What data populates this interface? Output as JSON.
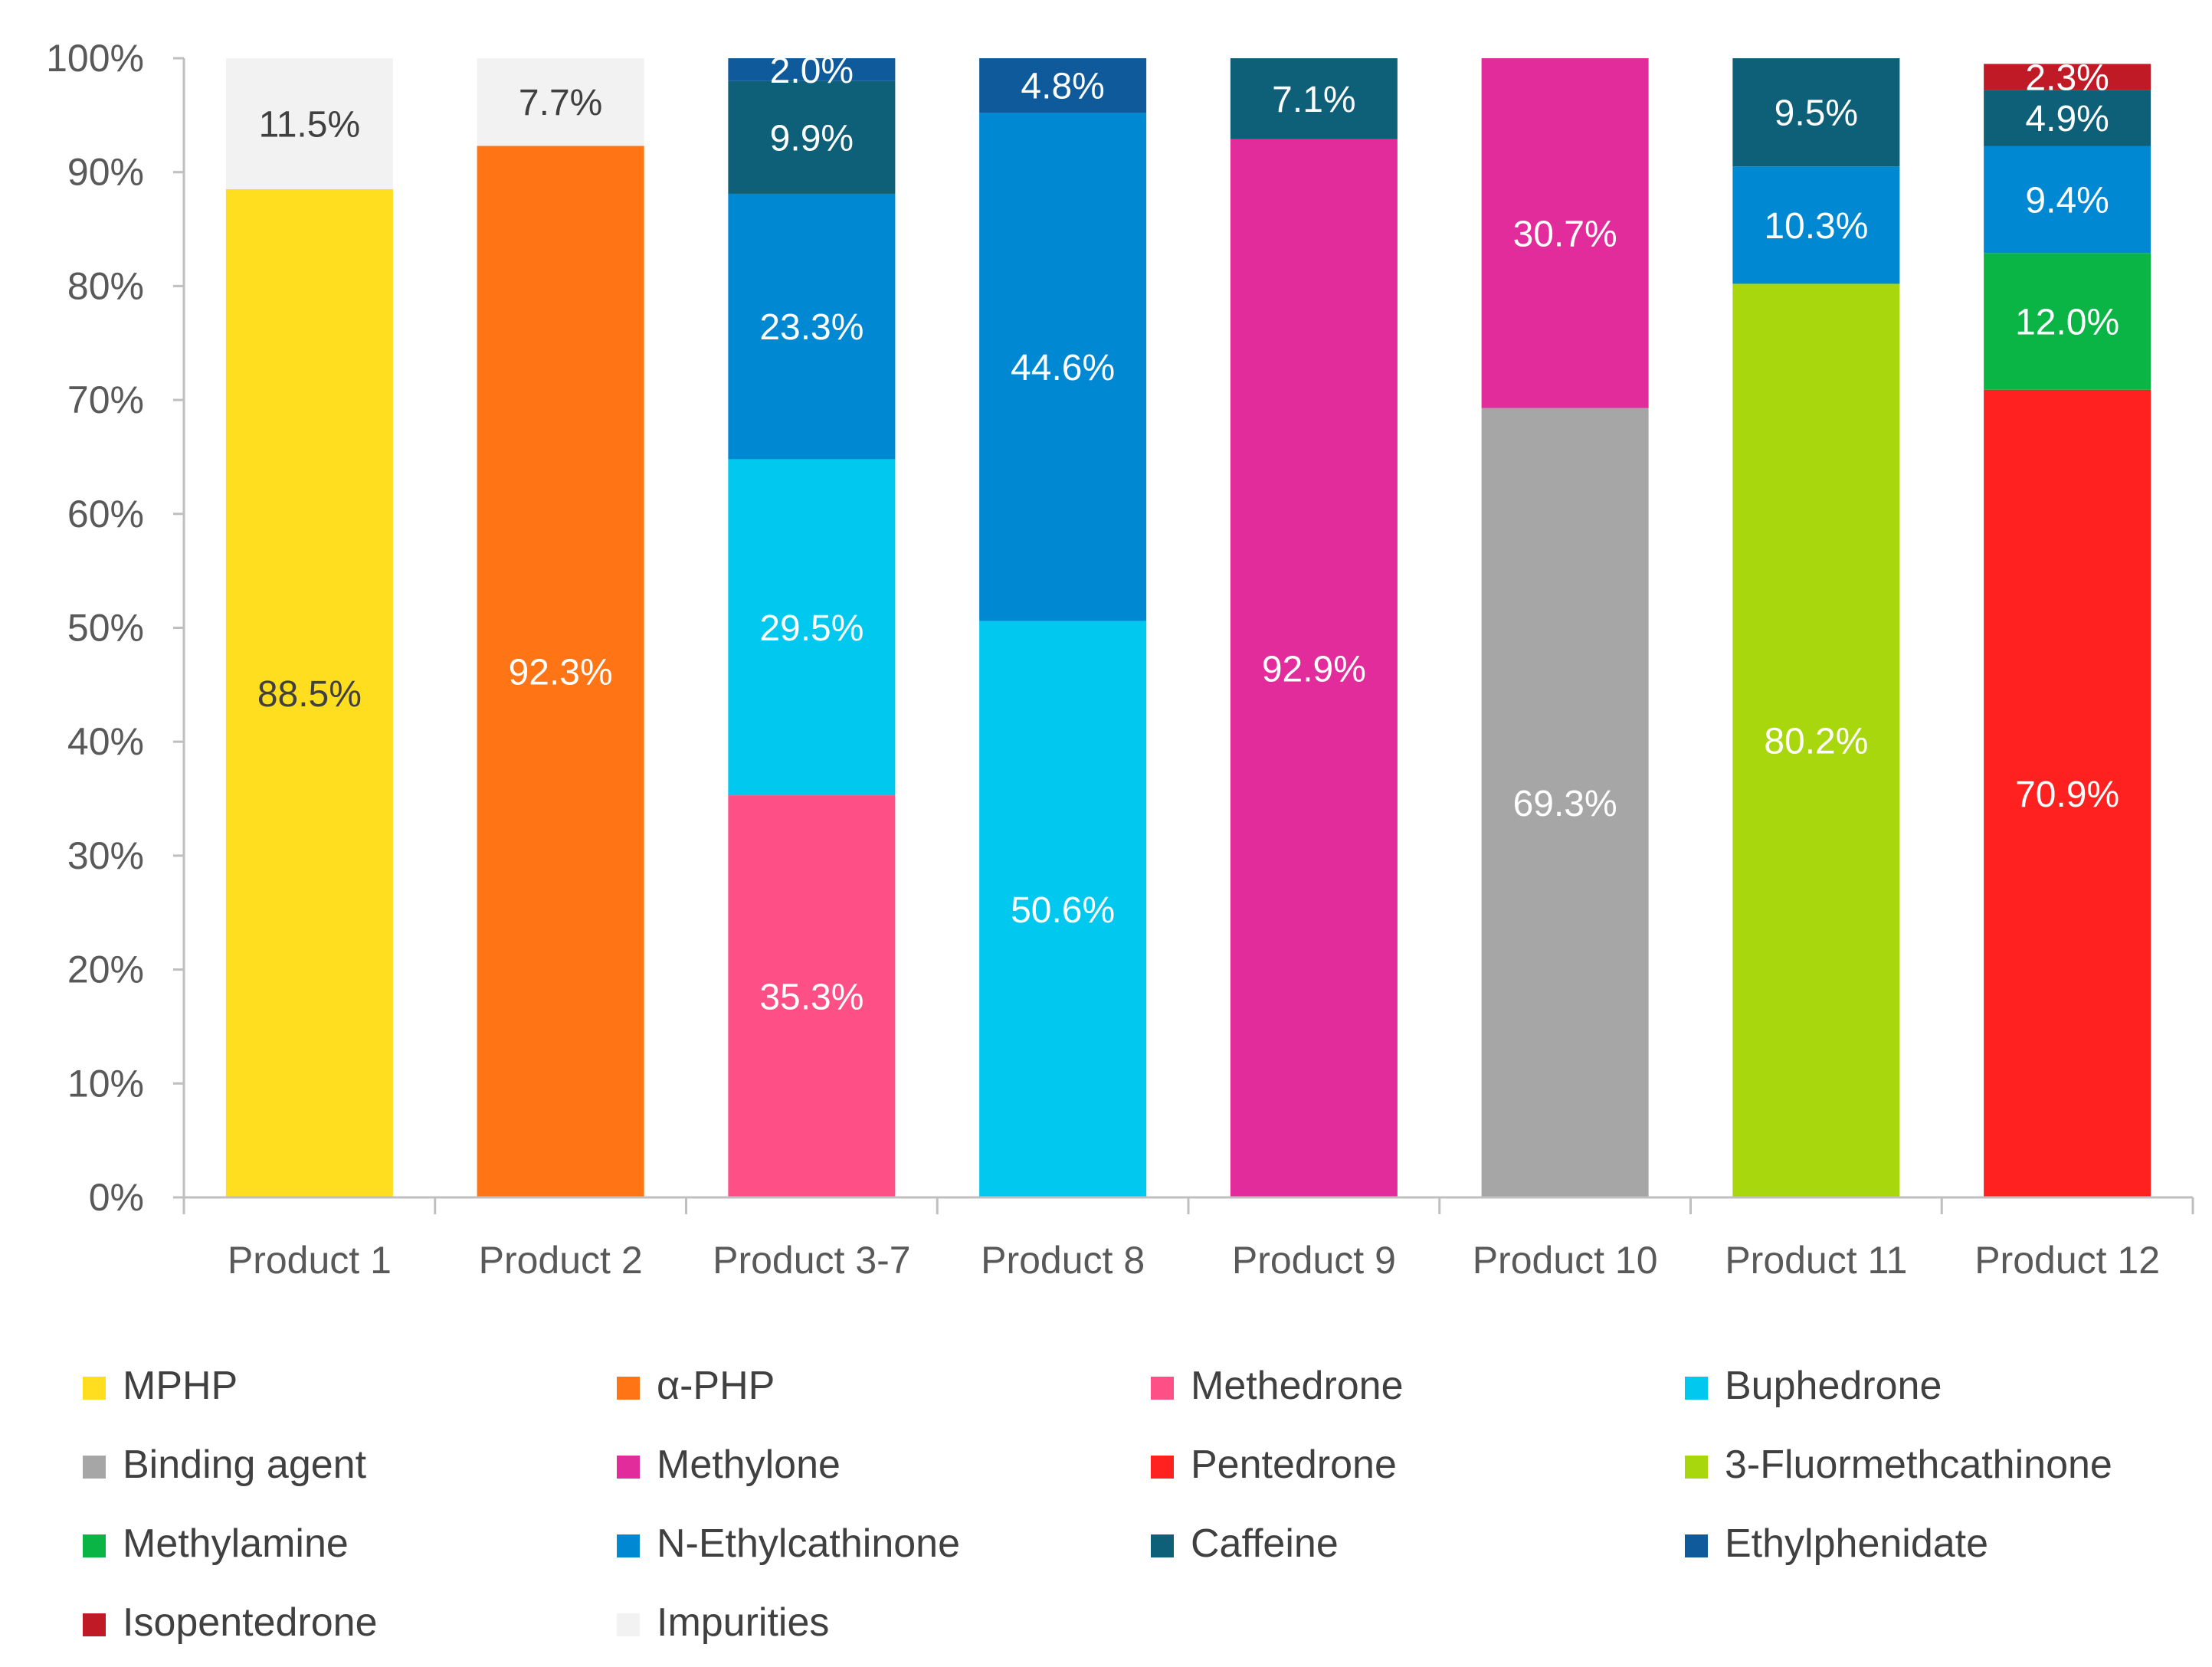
{
  "chart_data": {
    "type": "bar",
    "stacked": true,
    "title": "",
    "xlabel": "",
    "ylabel": "",
    "ylim": [
      0,
      100
    ],
    "y_ticks": [
      "0%",
      "10%",
      "20%",
      "30%",
      "40%",
      "50%",
      "60%",
      "70%",
      "80%",
      "90%",
      "100%"
    ],
    "categories": [
      "Product 1",
      "Product 2",
      "Product 3-7",
      "Product 8",
      "Product 9",
      "Product 10",
      "Product 11",
      "Product 12"
    ],
    "series": [
      {
        "name": "MPHP",
        "color": "#FFDD1F",
        "label_color": "#404040",
        "values": [
          88.5,
          0,
          0,
          0,
          0,
          0,
          0,
          0
        ]
      },
      {
        "name": "α-PHP",
        "color": "#FF7414",
        "label_color": "#ffffff",
        "values": [
          0,
          92.3,
          0,
          0,
          0,
          0,
          0,
          0
        ]
      },
      {
        "name": "Methedrone",
        "color": "#FF4F87",
        "label_color": "#ffffff",
        "values": [
          0,
          0,
          35.3,
          0,
          0,
          0,
          0,
          0
        ]
      },
      {
        "name": "Buphedrone",
        "color": "#00C8EE",
        "label_color": "#ffffff",
        "values": [
          0,
          0,
          29.5,
          50.6,
          0,
          0,
          0,
          0
        ]
      },
      {
        "name": "Binding agent",
        "color": "#A6A6A6",
        "label_color": "#ffffff",
        "values": [
          0,
          0,
          0,
          0,
          0,
          69.3,
          0,
          0
        ]
      },
      {
        "name": "Methylone",
        "color": "#E22C9B",
        "label_color": "#ffffff",
        "values": [
          0,
          0,
          0,
          0,
          92.9,
          30.7,
          0,
          0
        ]
      },
      {
        "name": "Pentedrone",
        "color": "#FF2020",
        "label_color": "#ffffff",
        "values": [
          0,
          0,
          0,
          0,
          0,
          0,
          0,
          70.9
        ]
      },
      {
        "name": "3-Fluormethcathinone",
        "color": "#A8D70E",
        "label_color": "#ffffff",
        "values": [
          0,
          0,
          0,
          0,
          0,
          0,
          80.2,
          0
        ]
      },
      {
        "name": "Methylamine",
        "color": "#0AB545",
        "label_color": "#ffffff",
        "values": [
          0,
          0,
          0,
          0,
          0,
          0,
          0,
          12.0
        ]
      },
      {
        "name": "N-Ethylcathinone",
        "color": "#0088D2",
        "label_color": "#ffffff",
        "values": [
          0,
          0,
          23.3,
          44.6,
          0,
          0,
          10.3,
          9.4
        ]
      },
      {
        "name": "Caffeine",
        "color": "#0E5F78",
        "label_color": "#ffffff",
        "values": [
          0,
          0,
          9.9,
          0,
          7.1,
          0,
          9.5,
          4.9
        ]
      },
      {
        "name": "Ethylphenidate",
        "color": "#0E5A9A",
        "label_color": "#ffffff",
        "values": [
          0,
          0,
          2.0,
          4.8,
          0,
          0,
          0,
          0
        ]
      },
      {
        "name": "Isopentedrone",
        "color": "#C01A26",
        "label_color": "#ffffff",
        "values": [
          0,
          0,
          0,
          0,
          0,
          0,
          0,
          2.3
        ]
      },
      {
        "name": "Impurities",
        "color": "#F2F2F2",
        "label_color": "#404040",
        "values": [
          11.5,
          7.7,
          0,
          0,
          0,
          0,
          0,
          0
        ]
      }
    ],
    "legend_position": "bottom"
  }
}
